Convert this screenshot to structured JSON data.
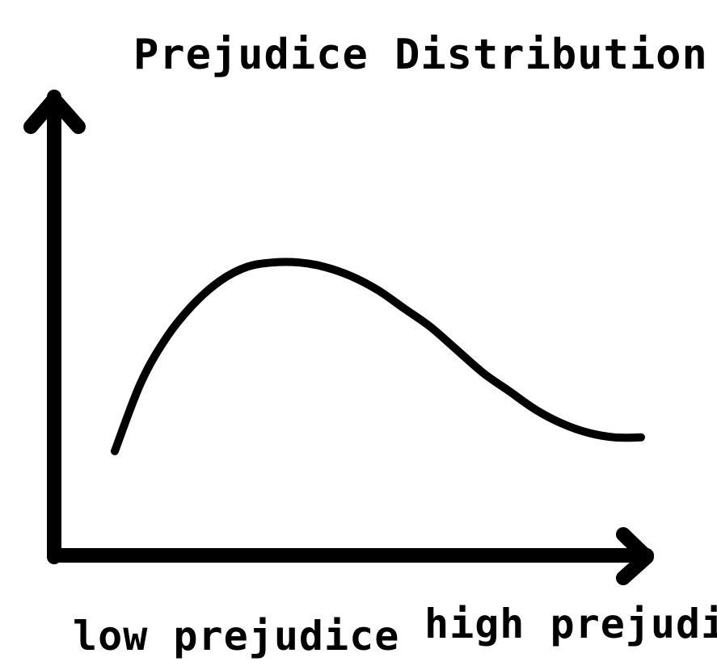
{
  "chart_data": {
    "type": "line",
    "title": "Prejudice Distribution",
    "xlabel": "",
    "ylabel": "",
    "x_tick_labels": [
      "low prejudice",
      "high prejudice"
    ],
    "x_range": [
      0,
      10
    ],
    "y_range": [
      0,
      10
    ],
    "grid": false,
    "legend": "none",
    "series": [
      {
        "x": [
          0,
          0.5,
          1.0,
          1.5,
          2.0,
          2.5,
          3.0,
          3.5,
          4.0,
          4.5,
          5.0,
          5.5,
          6.0,
          6.5,
          7.0,
          7.5,
          8.0,
          8.5,
          9.0,
          9.5,
          10.0
        ],
        "y": [
          2.3,
          3.8,
          4.8,
          5.5,
          6.0,
          6.3,
          6.4,
          6.4,
          6.3,
          6.1,
          5.8,
          5.4,
          5.0,
          4.5,
          4.0,
          3.6,
          3.2,
          2.9,
          2.7,
          2.6,
          2.6
        ]
      }
    ],
    "colors": {
      "line": "#000000",
      "axis": "#000000",
      "background": "#ffffff"
    }
  }
}
